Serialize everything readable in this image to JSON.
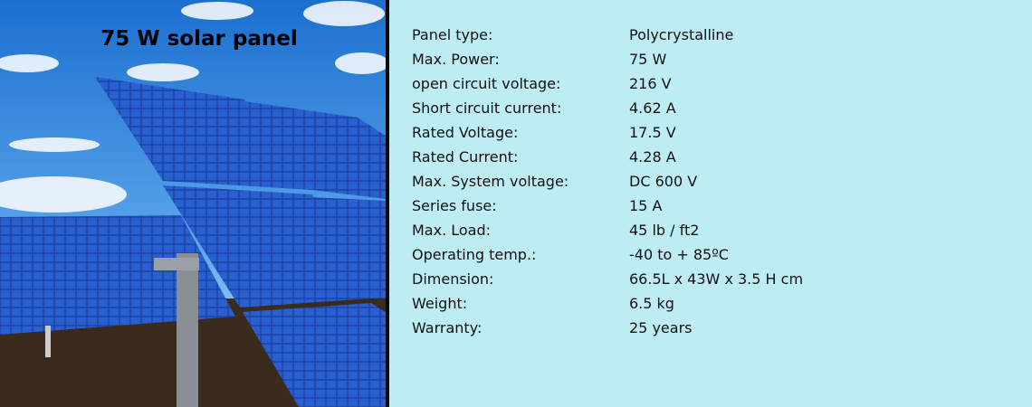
{
  "title": "75 W solar panel",
  "colors": {
    "panel_background": "#bdedf3",
    "divider": "#0a0a0a"
  },
  "specs": [
    {
      "label": "Panel type:",
      "value": "Polycrystalline"
    },
    {
      "label": "Max. Power:",
      "value": "75 W"
    },
    {
      "label": "open circuit voltage:",
      "value": "216 V"
    },
    {
      "label": "Short circuit current:",
      "value": "4.62 A"
    },
    {
      "label": "Rated Voltage:",
      "value": "17.5 V"
    },
    {
      "label": "Rated Current:",
      "value": "4.28 A"
    },
    {
      "label": "Max. System voltage:",
      "value": "DC 600 V"
    },
    {
      "label": "Series fuse:",
      "value": "15 A"
    },
    {
      "label": "Max. Load:",
      "value": "45 lb / ft2"
    },
    {
      "label": "Operating temp.:",
      "value": "-40 to + 85ºC"
    },
    {
      "label": "Dimension:",
      "value": "66.5L x 43W x 3.5 H cm"
    },
    {
      "label": "Weight:",
      "value": "6.5 kg"
    },
    {
      "label": "Warranty:",
      "value": "25 years"
    }
  ]
}
